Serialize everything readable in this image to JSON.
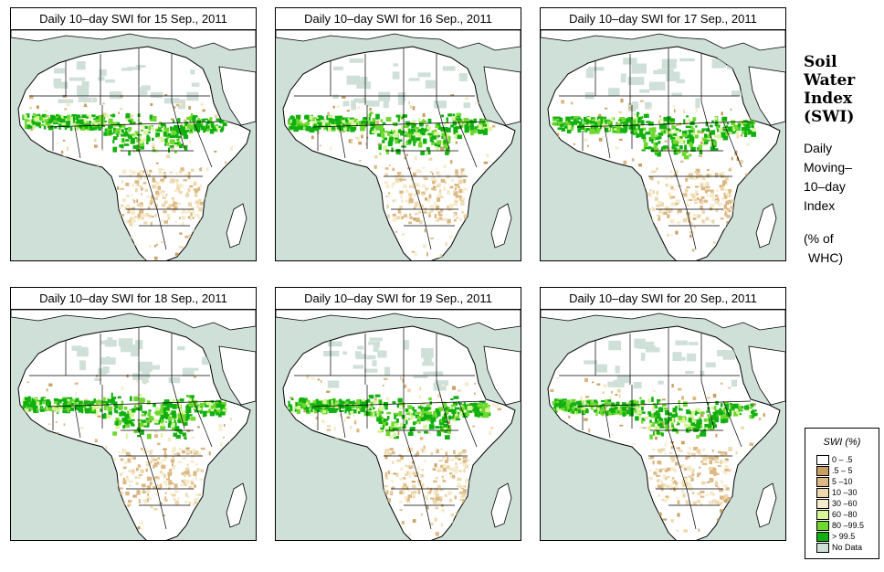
{
  "panels": [
    {
      "title": "Daily 10–day SWI for  15 Sep., 2011"
    },
    {
      "title": "Daily 10–day SWI for  16 Sep., 2011"
    },
    {
      "title": "Daily 10–day SWI for  17 Sep., 2011"
    },
    {
      "title": "Daily 10–day SWI for  18 Sep., 2011"
    },
    {
      "title": "Daily 10–day SWI for  19 Sep., 2011"
    },
    {
      "title": "Daily 10–day SWI for  20 Sep., 2011"
    }
  ],
  "side": {
    "title_lines": [
      "Soil",
      "Water",
      "Index",
      "(SWI)"
    ],
    "sub_lines": [
      "Daily",
      "Moving–",
      "10–day",
      "Index"
    ],
    "unit_lines": [
      "(% of",
      "WHC)"
    ]
  },
  "legend": {
    "title": "SWI (%)",
    "items": [
      {
        "label": "0 – .5",
        "color": "#ffffff"
      },
      {
        "label": ".5 – 5",
        "color": "#c9a064"
      },
      {
        "label": "5 –10",
        "color": "#dcb884"
      },
      {
        "label": "10 –30",
        "color": "#ecd8ac"
      },
      {
        "label": "30 –60",
        "color": "#f6eccb"
      },
      {
        "label": "60 –80",
        "color": "#d9f59a"
      },
      {
        "label": "80 –99.5",
        "color": "#6ed82e"
      },
      {
        "label": "> 99.5",
        "color": "#10b010"
      },
      {
        "label": "No Data",
        "color": "#cfe0d9"
      }
    ]
  },
  "colors": {
    "ocean": "#cfe0d9",
    "land": "#ffffff",
    "border": "#000000"
  }
}
